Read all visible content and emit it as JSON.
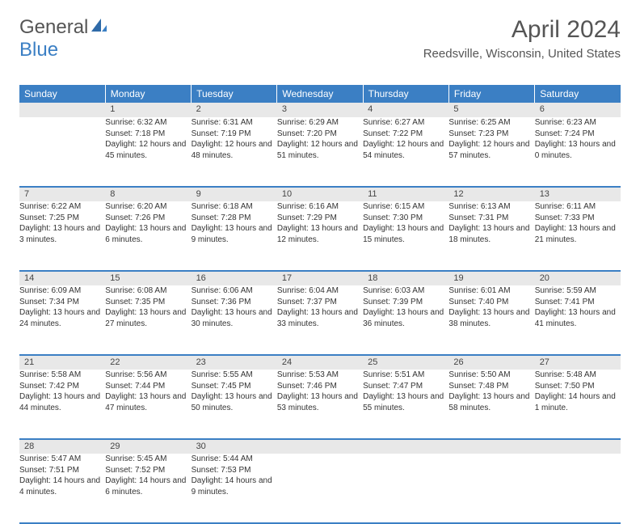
{
  "brand": {
    "part1": "General",
    "part2": "Blue"
  },
  "title": "April 2024",
  "location": "Reedsville, Wisconsin, United States",
  "colors": {
    "header_bg": "#3b7fc4",
    "header_text": "#ffffff",
    "daynum_bg": "#e8e8e8",
    "text": "#333333",
    "title_color": "#555555"
  },
  "day_headers": [
    "Sunday",
    "Monday",
    "Tuesday",
    "Wednesday",
    "Thursday",
    "Friday",
    "Saturday"
  ],
  "weeks": [
    [
      {
        "num": "",
        "sunrise": "",
        "sunset": "",
        "daylight": ""
      },
      {
        "num": "1",
        "sunrise": "Sunrise: 6:32 AM",
        "sunset": "Sunset: 7:18 PM",
        "daylight": "Daylight: 12 hours and 45 minutes."
      },
      {
        "num": "2",
        "sunrise": "Sunrise: 6:31 AM",
        "sunset": "Sunset: 7:19 PM",
        "daylight": "Daylight: 12 hours and 48 minutes."
      },
      {
        "num": "3",
        "sunrise": "Sunrise: 6:29 AM",
        "sunset": "Sunset: 7:20 PM",
        "daylight": "Daylight: 12 hours and 51 minutes."
      },
      {
        "num": "4",
        "sunrise": "Sunrise: 6:27 AM",
        "sunset": "Sunset: 7:22 PM",
        "daylight": "Daylight: 12 hours and 54 minutes."
      },
      {
        "num": "5",
        "sunrise": "Sunrise: 6:25 AM",
        "sunset": "Sunset: 7:23 PM",
        "daylight": "Daylight: 12 hours and 57 minutes."
      },
      {
        "num": "6",
        "sunrise": "Sunrise: 6:23 AM",
        "sunset": "Sunset: 7:24 PM",
        "daylight": "Daylight: 13 hours and 0 minutes."
      }
    ],
    [
      {
        "num": "7",
        "sunrise": "Sunrise: 6:22 AM",
        "sunset": "Sunset: 7:25 PM",
        "daylight": "Daylight: 13 hours and 3 minutes."
      },
      {
        "num": "8",
        "sunrise": "Sunrise: 6:20 AM",
        "sunset": "Sunset: 7:26 PM",
        "daylight": "Daylight: 13 hours and 6 minutes."
      },
      {
        "num": "9",
        "sunrise": "Sunrise: 6:18 AM",
        "sunset": "Sunset: 7:28 PM",
        "daylight": "Daylight: 13 hours and 9 minutes."
      },
      {
        "num": "10",
        "sunrise": "Sunrise: 6:16 AM",
        "sunset": "Sunset: 7:29 PM",
        "daylight": "Daylight: 13 hours and 12 minutes."
      },
      {
        "num": "11",
        "sunrise": "Sunrise: 6:15 AM",
        "sunset": "Sunset: 7:30 PM",
        "daylight": "Daylight: 13 hours and 15 minutes."
      },
      {
        "num": "12",
        "sunrise": "Sunrise: 6:13 AM",
        "sunset": "Sunset: 7:31 PM",
        "daylight": "Daylight: 13 hours and 18 minutes."
      },
      {
        "num": "13",
        "sunrise": "Sunrise: 6:11 AM",
        "sunset": "Sunset: 7:33 PM",
        "daylight": "Daylight: 13 hours and 21 minutes."
      }
    ],
    [
      {
        "num": "14",
        "sunrise": "Sunrise: 6:09 AM",
        "sunset": "Sunset: 7:34 PM",
        "daylight": "Daylight: 13 hours and 24 minutes."
      },
      {
        "num": "15",
        "sunrise": "Sunrise: 6:08 AM",
        "sunset": "Sunset: 7:35 PM",
        "daylight": "Daylight: 13 hours and 27 minutes."
      },
      {
        "num": "16",
        "sunrise": "Sunrise: 6:06 AM",
        "sunset": "Sunset: 7:36 PM",
        "daylight": "Daylight: 13 hours and 30 minutes."
      },
      {
        "num": "17",
        "sunrise": "Sunrise: 6:04 AM",
        "sunset": "Sunset: 7:37 PM",
        "daylight": "Daylight: 13 hours and 33 minutes."
      },
      {
        "num": "18",
        "sunrise": "Sunrise: 6:03 AM",
        "sunset": "Sunset: 7:39 PM",
        "daylight": "Daylight: 13 hours and 36 minutes."
      },
      {
        "num": "19",
        "sunrise": "Sunrise: 6:01 AM",
        "sunset": "Sunset: 7:40 PM",
        "daylight": "Daylight: 13 hours and 38 minutes."
      },
      {
        "num": "20",
        "sunrise": "Sunrise: 5:59 AM",
        "sunset": "Sunset: 7:41 PM",
        "daylight": "Daylight: 13 hours and 41 minutes."
      }
    ],
    [
      {
        "num": "21",
        "sunrise": "Sunrise: 5:58 AM",
        "sunset": "Sunset: 7:42 PM",
        "daylight": "Daylight: 13 hours and 44 minutes."
      },
      {
        "num": "22",
        "sunrise": "Sunrise: 5:56 AM",
        "sunset": "Sunset: 7:44 PM",
        "daylight": "Daylight: 13 hours and 47 minutes."
      },
      {
        "num": "23",
        "sunrise": "Sunrise: 5:55 AM",
        "sunset": "Sunset: 7:45 PM",
        "daylight": "Daylight: 13 hours and 50 minutes."
      },
      {
        "num": "24",
        "sunrise": "Sunrise: 5:53 AM",
        "sunset": "Sunset: 7:46 PM",
        "daylight": "Daylight: 13 hours and 53 minutes."
      },
      {
        "num": "25",
        "sunrise": "Sunrise: 5:51 AM",
        "sunset": "Sunset: 7:47 PM",
        "daylight": "Daylight: 13 hours and 55 minutes."
      },
      {
        "num": "26",
        "sunrise": "Sunrise: 5:50 AM",
        "sunset": "Sunset: 7:48 PM",
        "daylight": "Daylight: 13 hours and 58 minutes."
      },
      {
        "num": "27",
        "sunrise": "Sunrise: 5:48 AM",
        "sunset": "Sunset: 7:50 PM",
        "daylight": "Daylight: 14 hours and 1 minute."
      }
    ],
    [
      {
        "num": "28",
        "sunrise": "Sunrise: 5:47 AM",
        "sunset": "Sunset: 7:51 PM",
        "daylight": "Daylight: 14 hours and 4 minutes."
      },
      {
        "num": "29",
        "sunrise": "Sunrise: 5:45 AM",
        "sunset": "Sunset: 7:52 PM",
        "daylight": "Daylight: 14 hours and 6 minutes."
      },
      {
        "num": "30",
        "sunrise": "Sunrise: 5:44 AM",
        "sunset": "Sunset: 7:53 PM",
        "daylight": "Daylight: 14 hours and 9 minutes."
      },
      {
        "num": "",
        "sunrise": "",
        "sunset": "",
        "daylight": ""
      },
      {
        "num": "",
        "sunrise": "",
        "sunset": "",
        "daylight": ""
      },
      {
        "num": "",
        "sunrise": "",
        "sunset": "",
        "daylight": ""
      },
      {
        "num": "",
        "sunrise": "",
        "sunset": "",
        "daylight": ""
      }
    ]
  ]
}
